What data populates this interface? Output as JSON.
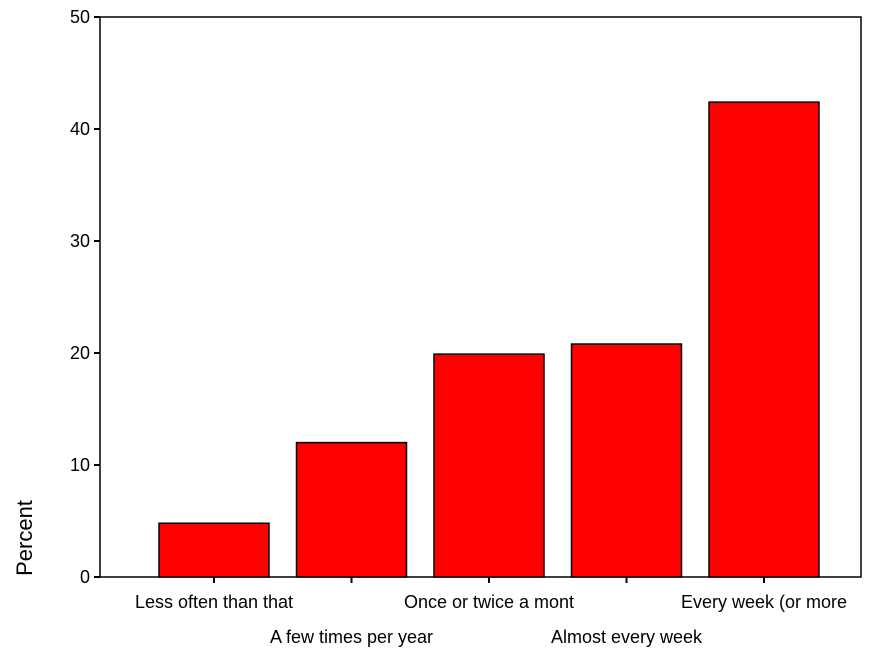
{
  "chart_data": {
    "type": "bar",
    "title": "",
    "xlabel": "",
    "ylabel": "Percent",
    "ylim": [
      0,
      50
    ],
    "yticks": [
      0,
      10,
      20,
      30,
      40,
      50
    ],
    "grid": false,
    "categories": [
      "Less often than that",
      "A few times per year",
      "Once or twice a mont",
      "Almost every week",
      "Every week (or more"
    ],
    "values": [
      4.8,
      12.0,
      19.9,
      20.8,
      42.4
    ],
    "bar_color": "#ff0000",
    "bar_edge_color": "#000000"
  }
}
